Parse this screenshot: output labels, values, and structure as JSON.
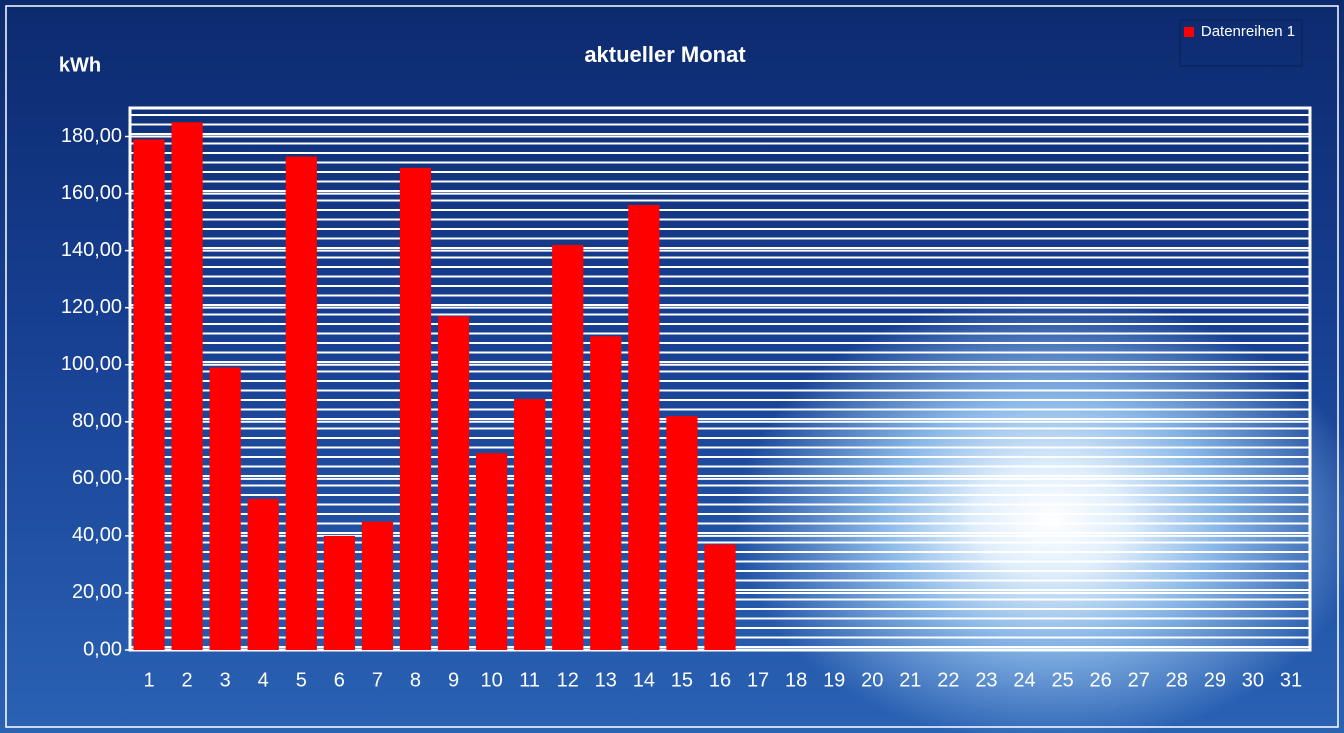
{
  "chart_data": {
    "type": "bar",
    "title": "aktueller Monat",
    "y_label": "kWh",
    "categories": [
      "1",
      "2",
      "3",
      "4",
      "5",
      "6",
      "7",
      "8",
      "9",
      "10",
      "11",
      "12",
      "13",
      "14",
      "15",
      "16",
      "17",
      "18",
      "19",
      "20",
      "21",
      "22",
      "23",
      "24",
      "25",
      "26",
      "27",
      "28",
      "29",
      "30",
      "31"
    ],
    "series": [
      {
        "name": "Datenreihen 1",
        "color": "#ff0000",
        "values": [
          179,
          185,
          99,
          53,
          173,
          40,
          45,
          169,
          117,
          69,
          88,
          142,
          110,
          156,
          82,
          37,
          null,
          null,
          null,
          null,
          null,
          null,
          null,
          null,
          null,
          null,
          null,
          null,
          null,
          null,
          null
        ]
      }
    ],
    "ylim": [
      0,
      190
    ],
    "yticks": [
      {
        "value": 0,
        "label": "0,00"
      },
      {
        "value": 20,
        "label": "20,00"
      },
      {
        "value": 40,
        "label": "40,00"
      },
      {
        "value": 60,
        "label": "60,00"
      },
      {
        "value": 80,
        "label": "80,00"
      },
      {
        "value": 100,
        "label": "100,00"
      },
      {
        "value": 120,
        "label": "120,00"
      },
      {
        "value": 140,
        "label": "140,00"
      },
      {
        "value": 160,
        "label": "160,00"
      },
      {
        "value": 180,
        "label": "180,00"
      }
    ],
    "grid": true,
    "legend": "top-right"
  }
}
